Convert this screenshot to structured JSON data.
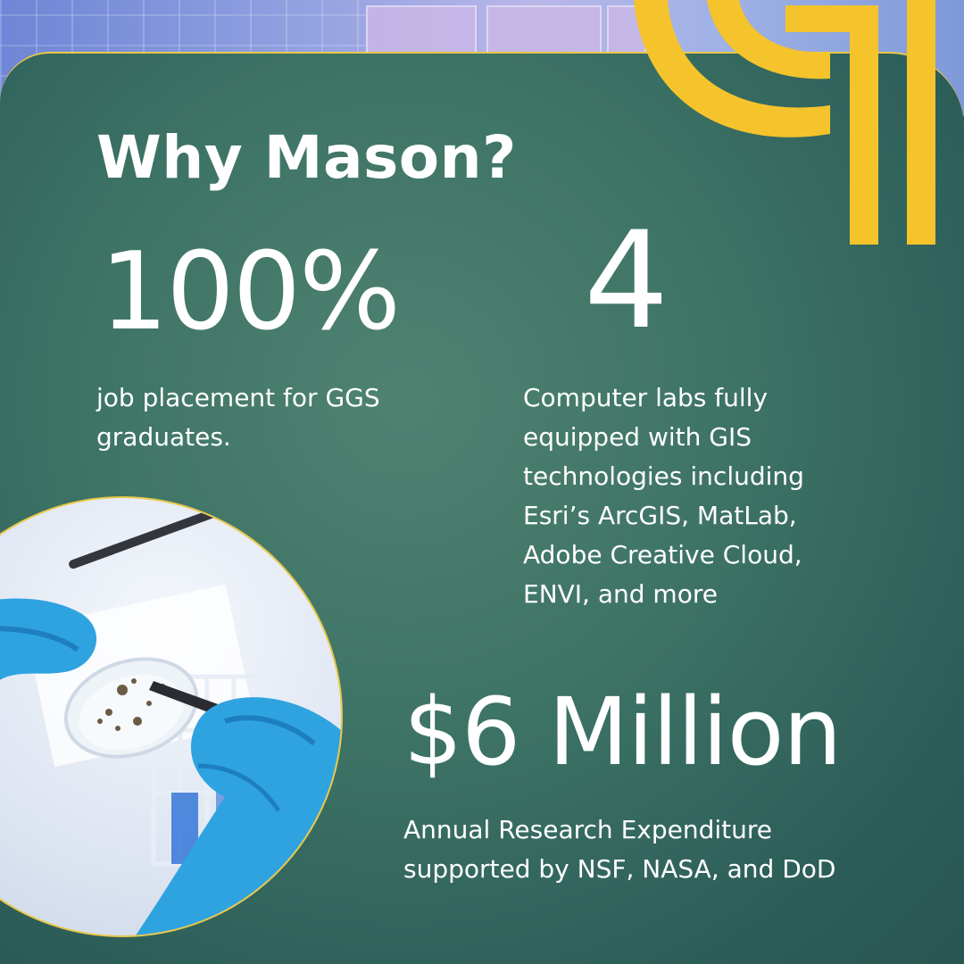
{
  "title": "Why Mason?",
  "stats": [
    {
      "value": "100%",
      "description": "job placement for GGS graduates."
    },
    {
      "value": "4",
      "description": "Computer labs fully equipped with GIS technologies including Esri’s ArcGIS, MatLab, Adobe Creative Cloud, ENVI, and more"
    },
    {
      "value": "$6 Million",
      "description": "Annual Research Expenditure supported by NSF, NASA, and DoD"
    }
  ],
  "colors": {
    "accent_gold": "#f5c42c",
    "card_green": "#3e7466",
    "glove_blue": "#2fa3e0"
  },
  "icons": {
    "logo": "gmu-logo",
    "photo": "lab-researcher-petri-dish-photo"
  }
}
